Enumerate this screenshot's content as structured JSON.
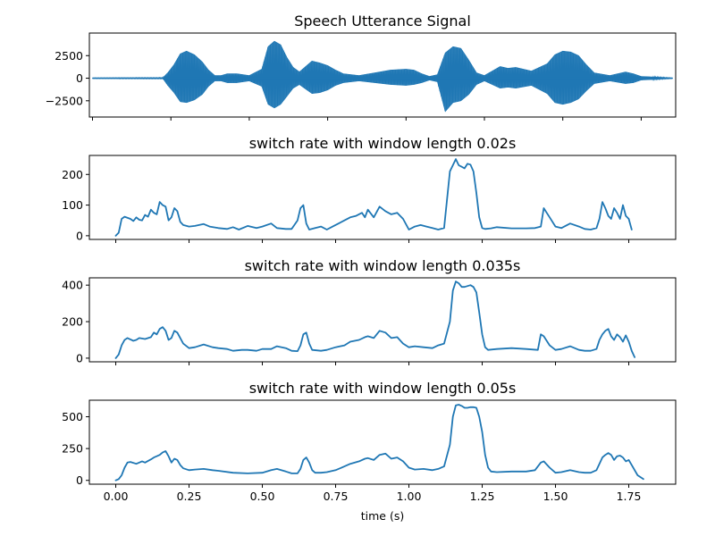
{
  "colors": {
    "series": "#1f77b4",
    "axes": "#000000",
    "background": "#ffffff"
  },
  "chart_data": [
    {
      "type": "line",
      "title": "Speech Utterance Signal",
      "xlabel": "",
      "ylabel": "",
      "xlim": [
        -0.02,
        3.72
      ],
      "ylim": [
        -4300,
        5000
      ],
      "x_tick_values": [
        0.0,
        0.5,
        1.0,
        1.5,
        2.0,
        2.5,
        3.0,
        3.5
      ],
      "y_ticks": [
        {
          "value": 2500,
          "label": "2500"
        },
        {
          "value": 0,
          "label": "0"
        },
        {
          "value": -2500,
          "label": "−2500"
        }
      ],
      "grid": false,
      "legend": "none",
      "envelope": {
        "name": "amplitude envelope",
        "x": [
          0.0,
          0.45,
          0.48,
          0.52,
          0.56,
          0.6,
          0.65,
          0.7,
          0.74,
          0.78,
          0.82,
          0.86,
          0.92,
          1.0,
          1.08,
          1.12,
          1.16,
          1.2,
          1.24,
          1.28,
          1.32,
          1.36,
          1.4,
          1.45,
          1.5,
          1.55,
          1.6,
          1.7,
          1.8,
          1.9,
          2.0,
          2.05,
          2.1,
          2.15,
          2.2,
          2.25,
          2.3,
          2.35,
          2.4,
          2.45,
          2.5,
          2.55,
          2.6,
          2.65,
          2.7,
          2.8,
          2.9,
          2.95,
          3.0,
          3.05,
          3.1,
          3.15,
          3.2,
          3.3,
          3.4,
          3.45,
          3.5,
          3.7
        ],
        "upper": [
          30,
          60,
          600,
          1500,
          2700,
          3000,
          2600,
          1800,
          900,
          300,
          300,
          500,
          500,
          300,
          1000,
          3500,
          4100,
          3700,
          2300,
          1200,
          700,
          1300,
          1900,
          1700,
          1400,
          900,
          500,
          300,
          600,
          900,
          1000,
          900,
          500,
          200,
          400,
          2800,
          3500,
          3300,
          2000,
          600,
          300,
          800,
          1300,
          1100,
          1200,
          800,
          1600,
          2600,
          3000,
          2900,
          2500,
          1500,
          600,
          300,
          700,
          500,
          200,
          30
        ],
        "lower": [
          -30,
          -60,
          -800,
          -1600,
          -2600,
          -2700,
          -2400,
          -1800,
          -900,
          -300,
          -300,
          -500,
          -500,
          -300,
          -900,
          -2900,
          -3300,
          -2900,
          -2000,
          -1100,
          -700,
          -1200,
          -1700,
          -1600,
          -1300,
          -800,
          -500,
          -300,
          -500,
          -700,
          -800,
          -700,
          -500,
          -200,
          -400,
          -3700,
          -2700,
          -2500,
          -1800,
          -700,
          -300,
          -700,
          -1100,
          -1000,
          -1100,
          -800,
          -1700,
          -2700,
          -2900,
          -2700,
          -2300,
          -1400,
          -600,
          -300,
          -600,
          -500,
          -200,
          -30
        ]
      }
    },
    {
      "type": "line",
      "title": "switch rate with window length 0.02s",
      "xlabel": "",
      "ylabel": "",
      "xlim": [
        -0.09,
        1.91
      ],
      "ylim": [
        -12,
        262
      ],
      "x_tick_values": [
        0.0,
        0.25,
        0.5,
        0.75,
        1.0,
        1.25,
        1.5,
        1.75
      ],
      "y_ticks": [
        {
          "value": 0,
          "label": "0"
        },
        {
          "value": 100,
          "label": "100"
        },
        {
          "value": 200,
          "label": "200"
        }
      ],
      "grid": false,
      "legend": "none",
      "series": [
        {
          "x": [
            0.0,
            0.01,
            0.02,
            0.03,
            0.05,
            0.06,
            0.07,
            0.08,
            0.09,
            0.1,
            0.11,
            0.12,
            0.13,
            0.14,
            0.15,
            0.16,
            0.17,
            0.18,
            0.19,
            0.2,
            0.21,
            0.22,
            0.23,
            0.25,
            0.27,
            0.3,
            0.32,
            0.35,
            0.38,
            0.4,
            0.42,
            0.45,
            0.48,
            0.5,
            0.53,
            0.55,
            0.58,
            0.6,
            0.62,
            0.63,
            0.64,
            0.65,
            0.66,
            0.68,
            0.7,
            0.72,
            0.74,
            0.76,
            0.78,
            0.8,
            0.82,
            0.84,
            0.85,
            0.86,
            0.88,
            0.9,
            0.92,
            0.94,
            0.96,
            0.98,
            1.0,
            1.02,
            1.04,
            1.06,
            1.08,
            1.1,
            1.12,
            1.14,
            1.15,
            1.16,
            1.17,
            1.18,
            1.19,
            1.2,
            1.21,
            1.22,
            1.23,
            1.24,
            1.25,
            1.26,
            1.28,
            1.3,
            1.35,
            1.4,
            1.43,
            1.45,
            1.46,
            1.48,
            1.5,
            1.52,
            1.55,
            1.58,
            1.6,
            1.62,
            1.64,
            1.65,
            1.66,
            1.67,
            1.68,
            1.69,
            1.7,
            1.71,
            1.72,
            1.73,
            1.74,
            1.75,
            1.76
          ],
          "y": [
            0,
            10,
            55,
            62,
            55,
            48,
            60,
            52,
            50,
            68,
            62,
            85,
            75,
            70,
            110,
            100,
            95,
            50,
            60,
            90,
            80,
            45,
            35,
            30,
            32,
            38,
            30,
            25,
            22,
            28,
            20,
            32,
            25,
            30,
            40,
            25,
            22,
            22,
            50,
            90,
            100,
            40,
            20,
            25,
            30,
            20,
            30,
            40,
            50,
            60,
            65,
            75,
            60,
            85,
            60,
            95,
            80,
            70,
            75,
            55,
            20,
            30,
            35,
            30,
            25,
            20,
            25,
            210,
            230,
            250,
            230,
            225,
            220,
            235,
            232,
            210,
            140,
            60,
            25,
            22,
            24,
            28,
            24,
            24,
            25,
            30,
            90,
            60,
            30,
            25,
            40,
            30,
            22,
            20,
            25,
            55,
            110,
            90,
            65,
            55,
            90,
            75,
            55,
            100,
            65,
            55,
            20
          ]
        }
      ]
    },
    {
      "type": "line",
      "title": "switch rate with window length 0.035s",
      "xlabel": "",
      "ylabel": "",
      "xlim": [
        -0.09,
        1.91
      ],
      "ylim": [
        -20,
        440
      ],
      "x_tick_values": [
        0.0,
        0.25,
        0.5,
        0.75,
        1.0,
        1.25,
        1.5,
        1.75
      ],
      "y_ticks": [
        {
          "value": 0,
          "label": "0"
        },
        {
          "value": 200,
          "label": "200"
        },
        {
          "value": 400,
          "label": "400"
        }
      ],
      "grid": false,
      "legend": "none",
      "series": [
        {
          "x": [
            0.0,
            0.01,
            0.02,
            0.03,
            0.04,
            0.06,
            0.07,
            0.08,
            0.1,
            0.12,
            0.13,
            0.14,
            0.15,
            0.16,
            0.17,
            0.18,
            0.19,
            0.2,
            0.21,
            0.22,
            0.23,
            0.25,
            0.27,
            0.3,
            0.33,
            0.35,
            0.38,
            0.4,
            0.43,
            0.45,
            0.48,
            0.5,
            0.53,
            0.55,
            0.58,
            0.6,
            0.62,
            0.63,
            0.64,
            0.65,
            0.66,
            0.67,
            0.7,
            0.72,
            0.75,
            0.78,
            0.8,
            0.83,
            0.85,
            0.86,
            0.88,
            0.9,
            0.92,
            0.94,
            0.96,
            0.98,
            1.0,
            1.02,
            1.05,
            1.08,
            1.1,
            1.12,
            1.14,
            1.15,
            1.16,
            1.17,
            1.18,
            1.19,
            1.2,
            1.21,
            1.22,
            1.23,
            1.24,
            1.25,
            1.26,
            1.27,
            1.3,
            1.35,
            1.4,
            1.44,
            1.45,
            1.46,
            1.48,
            1.5,
            1.52,
            1.55,
            1.58,
            1.6,
            1.62,
            1.64,
            1.65,
            1.66,
            1.67,
            1.68,
            1.69,
            1.7,
            1.71,
            1.72,
            1.73,
            1.74,
            1.75,
            1.76,
            1.77
          ],
          "y": [
            0,
            20,
            70,
            100,
            110,
            95,
            100,
            110,
            105,
            115,
            140,
            130,
            160,
            170,
            150,
            100,
            110,
            150,
            140,
            110,
            80,
            55,
            60,
            75,
            60,
            55,
            50,
            40,
            45,
            45,
            40,
            50,
            50,
            65,
            55,
            40,
            38,
            70,
            130,
            140,
            80,
            45,
            40,
            45,
            60,
            70,
            90,
            100,
            115,
            120,
            110,
            150,
            140,
            110,
            115,
            80,
            60,
            65,
            60,
            55,
            70,
            80,
            200,
            370,
            420,
            410,
            390,
            390,
            395,
            400,
            390,
            360,
            250,
            130,
            60,
            45,
            50,
            55,
            50,
            45,
            130,
            120,
            70,
            45,
            50,
            65,
            45,
            40,
            40,
            50,
            100,
            130,
            150,
            160,
            120,
            100,
            130,
            115,
            90,
            125,
            90,
            40,
            5
          ]
        }
      ]
    },
    {
      "type": "line",
      "title": "switch rate with window length 0.05s",
      "xlabel": "time (s)",
      "ylabel": "",
      "xlim": [
        -0.09,
        1.91
      ],
      "ylim": [
        -30,
        630
      ],
      "x_tick_values": [
        0.0,
        0.25,
        0.5,
        0.75,
        1.0,
        1.25,
        1.5,
        1.75
      ],
      "x_tick_labels": [
        "0.00",
        "0.25",
        "0.50",
        "0.75",
        "1.00",
        "1.25",
        "1.50",
        "1.75"
      ],
      "y_ticks": [
        {
          "value": 0,
          "label": "0"
        },
        {
          "value": 250,
          "label": "250"
        },
        {
          "value": 500,
          "label": "500"
        }
      ],
      "grid": false,
      "legend": "none",
      "series": [
        {
          "x": [
            0.0,
            0.01,
            0.02,
            0.03,
            0.04,
            0.05,
            0.07,
            0.09,
            0.1,
            0.12,
            0.13,
            0.14,
            0.15,
            0.16,
            0.17,
            0.18,
            0.19,
            0.2,
            0.21,
            0.22,
            0.23,
            0.25,
            0.27,
            0.3,
            0.33,
            0.35,
            0.4,
            0.45,
            0.5,
            0.53,
            0.55,
            0.58,
            0.6,
            0.62,
            0.63,
            0.64,
            0.65,
            0.66,
            0.67,
            0.68,
            0.7,
            0.72,
            0.75,
            0.78,
            0.8,
            0.83,
            0.85,
            0.86,
            0.88,
            0.9,
            0.92,
            0.94,
            0.96,
            0.98,
            1.0,
            1.02,
            1.05,
            1.08,
            1.1,
            1.12,
            1.14,
            1.15,
            1.16,
            1.17,
            1.18,
            1.19,
            1.2,
            1.21,
            1.22,
            1.23,
            1.24,
            1.25,
            1.26,
            1.27,
            1.28,
            1.3,
            1.35,
            1.4,
            1.43,
            1.45,
            1.46,
            1.48,
            1.5,
            1.52,
            1.55,
            1.58,
            1.6,
            1.62,
            1.64,
            1.65,
            1.66,
            1.67,
            1.68,
            1.69,
            1.7,
            1.71,
            1.72,
            1.73,
            1.74,
            1.75,
            1.76,
            1.78,
            1.8
          ],
          "y": [
            0,
            10,
            40,
            100,
            140,
            145,
            130,
            150,
            140,
            165,
            180,
            190,
            200,
            220,
            230,
            190,
            140,
            170,
            160,
            120,
            95,
            80,
            85,
            90,
            80,
            75,
            60,
            55,
            60,
            80,
            90,
            70,
            55,
            55,
            90,
            160,
            180,
            140,
            80,
            60,
            60,
            65,
            80,
            110,
            130,
            150,
            170,
            175,
            160,
            200,
            210,
            170,
            180,
            150,
            100,
            85,
            90,
            80,
            90,
            110,
            280,
            500,
            590,
            595,
            585,
            570,
            570,
            575,
            575,
            570,
            500,
            380,
            200,
            100,
            70,
            65,
            70,
            70,
            80,
            140,
            150,
            100,
            60,
            65,
            80,
            65,
            60,
            60,
            80,
            130,
            180,
            200,
            215,
            200,
            160,
            190,
            195,
            180,
            150,
            160,
            120,
            40,
            10
          ]
        }
      ]
    }
  ]
}
